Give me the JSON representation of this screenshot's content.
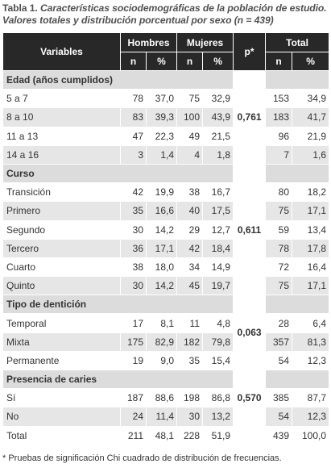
{
  "caption": {
    "lead": "Tabla 1.",
    "text": "Características sociodemográficas de la población de estudio. Valores totales y distribución porcentual por sexo (n = 439)"
  },
  "headers": {
    "variables": "Variables",
    "hombres": "Hombres",
    "mujeres": "Mujeres",
    "p": "p*",
    "total": "Total",
    "n": "n",
    "pct": "%"
  },
  "sections": [
    {
      "title": "Edad (años cumplidos)",
      "p": "0,761",
      "rows": [
        {
          "label": "5 a 7",
          "hn": "78",
          "hp": "37,0",
          "mn": "75",
          "mp": "32,9",
          "tn": "153",
          "tp": "34,9"
        },
        {
          "label": "8 a 10",
          "hn": "83",
          "hp": "39,3",
          "mn": "100",
          "mp": "43,9",
          "tn": "183",
          "tp": "41,7"
        },
        {
          "label": "11 a 13",
          "hn": "47",
          "hp": "22,3",
          "mn": "49",
          "mp": "21,5",
          "tn": "96",
          "tp": "21,9"
        },
        {
          "label": "14 a 16",
          "hn": "3",
          "hp": "1,4",
          "mn": "4",
          "mp": "1,8",
          "tn": "7",
          "tp": "1,6"
        }
      ]
    },
    {
      "title": "Curso",
      "p": "0,611",
      "rows": [
        {
          "label": "Transición",
          "hn": "42",
          "hp": "19,9",
          "mn": "38",
          "mp": "16,7",
          "tn": "80",
          "tp": "18,2"
        },
        {
          "label": "Primero",
          "hn": "35",
          "hp": "16,6",
          "mn": "40",
          "mp": "17,5",
          "tn": "75",
          "tp": "17,1"
        },
        {
          "label": "Segundo",
          "hn": "30",
          "hp": "14,2",
          "mn": "29",
          "mp": "12,7",
          "tn": "59",
          "tp": "13,4"
        },
        {
          "label": "Tercero",
          "hn": "36",
          "hp": "17,1",
          "mn": "42",
          "mp": "18,4",
          "tn": "78",
          "tp": "17,8"
        },
        {
          "label": "Cuarto",
          "hn": "38",
          "hp": "18,0",
          "mn": "34",
          "mp": "14,9",
          "tn": "72",
          "tp": "16,4"
        },
        {
          "label": "Quinto",
          "hn": "30",
          "hp": "14,2",
          "mn": "45",
          "mp": "19,7",
          "tn": "75",
          "tp": "17,1"
        }
      ]
    },
    {
      "title": "Tipo de dentición",
      "p": "0,063",
      "rows": [
        {
          "label": "Temporal",
          "hn": "17",
          "hp": "8,1",
          "mn": "11",
          "mp": "4,8",
          "tn": "28",
          "tp": "6,4"
        },
        {
          "label": "Mixta",
          "hn": "175",
          "hp": "82,9",
          "mn": "182",
          "mp": "79,8",
          "tn": "357",
          "tp": "81,3"
        },
        {
          "label": "Permanente",
          "hn": "19",
          "hp": "9,0",
          "mn": "35",
          "mp": "15,4",
          "tn": "54",
          "tp": "12,3"
        }
      ]
    },
    {
      "title": "Presencia de caries",
      "p": "0,570",
      "rows": [
        {
          "label": "Sí",
          "hn": "187",
          "hp": "88,6",
          "mn": "198",
          "mp": "86,8",
          "tn": "385",
          "tp": "87,7"
        },
        {
          "label": "No",
          "hn": "24",
          "hp": "11,4",
          "mn": "30",
          "mp": "13,2",
          "tn": "54",
          "tp": "12,3"
        }
      ]
    }
  ],
  "total": {
    "label": "Total",
    "hn": "211",
    "hp": "48,1",
    "mn": "228",
    "mp": "51,9",
    "tn": "439",
    "tp": "100,0"
  },
  "footnote": "* Pruebas de significación Chi cuadrado de distribución de frecuencias."
}
